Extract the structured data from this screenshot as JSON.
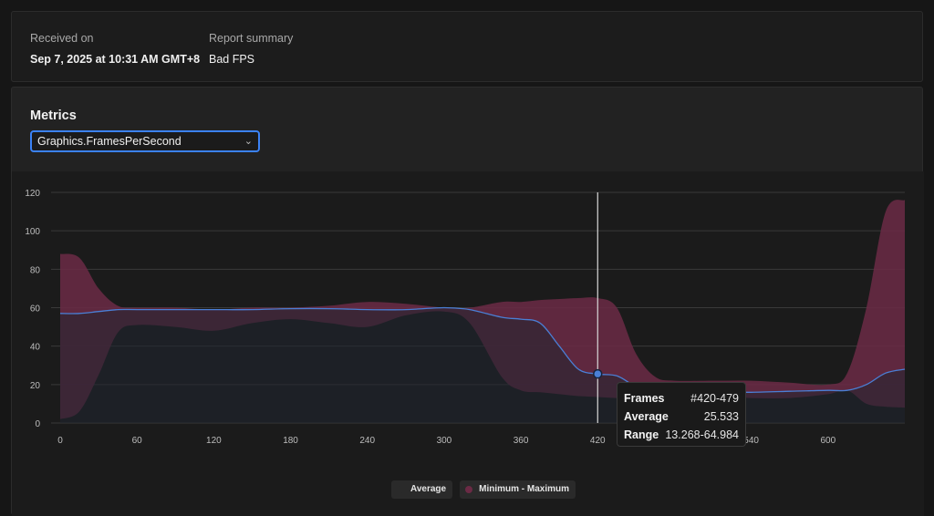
{
  "report": {
    "received_label": "Received on",
    "received_value": "Sep 7, 2025 at 10:31 AM GMT+8",
    "summary_label": "Report summary",
    "summary_value": "Bad FPS"
  },
  "metrics": {
    "title": "Metrics",
    "selected_metric": "Graphics.FramesPerSecond"
  },
  "tooltip": {
    "frames_label": "Frames",
    "frames_value": "#420-479",
    "average_label": "Average",
    "average_value": "25.533",
    "range_label": "Range",
    "range_value": "13.268-64.984"
  },
  "legend": {
    "average": "Average",
    "range": "Minimum - Maximum"
  },
  "colors": {
    "average": "#4a7fd6",
    "range": "#6b2a45",
    "crosshair": "#d8d8d8",
    "select_border": "#3b82f6"
  },
  "chart_data": {
    "type": "area",
    "xlim": [
      0,
      660
    ],
    "ylim": [
      0,
      120
    ],
    "x_ticks": [
      0,
      60,
      120,
      180,
      240,
      300,
      360,
      420,
      480,
      540,
      600
    ],
    "x_tick_labels": [
      "0",
      "60",
      "120",
      "180",
      "240",
      "300",
      "360",
      "420",
      "",
      "540",
      "600"
    ],
    "y_ticks": [
      0,
      20,
      40,
      60,
      80,
      100,
      120
    ],
    "grid": true,
    "legend_position": "bottom-center",
    "highlight_x": 420,
    "highlight_y": 25.533,
    "series": [
      {
        "name": "Average",
        "type": "line",
        "x": [
          0,
          15,
          30,
          45,
          60,
          90,
          120,
          150,
          180,
          210,
          240,
          270,
          300,
          320,
          345,
          360,
          375,
          390,
          405,
          420,
          435,
          450,
          465,
          480,
          510,
          540,
          570,
          600,
          615,
          630,
          645,
          660
        ],
        "y": [
          57,
          57,
          58,
          59,
          59,
          59,
          59,
          59,
          59.5,
          59.5,
          59,
          59,
          60,
          59,
          55,
          54,
          52,
          40,
          28,
          25.5,
          24.5,
          19,
          16.5,
          16,
          16,
          16,
          16.5,
          17,
          17,
          20,
          26,
          28
        ]
      },
      {
        "name": "Minimum - Maximum",
        "type": "range",
        "x": [
          0,
          15,
          30,
          45,
          60,
          90,
          120,
          150,
          180,
          210,
          240,
          270,
          300,
          320,
          345,
          360,
          375,
          390,
          405,
          420,
          435,
          450,
          465,
          480,
          510,
          540,
          570,
          600,
          615,
          630,
          645,
          660
        ],
        "min": [
          2,
          6,
          25,
          47,
          51,
          50,
          48,
          52,
          54,
          52,
          50,
          56,
          58,
          52,
          24,
          17,
          16,
          15,
          14,
          13.5,
          13,
          13,
          13.5,
          14,
          14,
          13,
          13,
          15,
          17,
          10,
          8.5,
          8
        ],
        "max": [
          88,
          86,
          70,
          61,
          60,
          60,
          59,
          60,
          60,
          61,
          63,
          62,
          60,
          60,
          63,
          63,
          64,
          64.5,
          65,
          65,
          60,
          36,
          24,
          22,
          22,
          22,
          21,
          20,
          26,
          60,
          110,
          116
        ]
      }
    ]
  }
}
